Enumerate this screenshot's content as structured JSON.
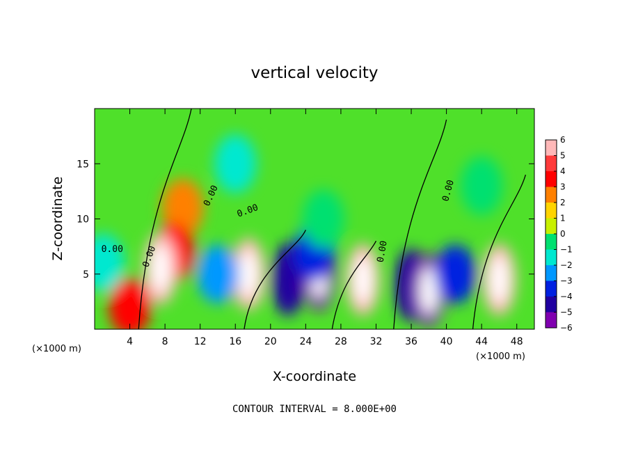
{
  "chart_data": {
    "type": "heatmap",
    "title": "vertical velocity",
    "xlabel": "X-coordinate",
    "ylabel": "Z-coordinate",
    "x_unit": "(×1000 m)",
    "x_unit_right": "(×1000 m)",
    "xlim": [
      0,
      50
    ],
    "ylim": [
      0,
      20
    ],
    "x_ticks": [
      4,
      8,
      12,
      16,
      20,
      24,
      28,
      32,
      36,
      40,
      44,
      48
    ],
    "y_ticks": [
      5,
      10,
      15
    ],
    "colorbar": {
      "ticks": [
        6,
        5,
        4,
        3,
        2,
        1,
        0,
        -1,
        -2,
        -3,
        -4,
        -5,
        -6
      ],
      "tick_labels": [
        "6",
        "5",
        "4",
        "3",
        "2",
        "1",
        "0",
        "−1",
        "−2",
        "−3",
        "−4",
        "−5",
        "−6"
      ],
      "range": [
        -6,
        6
      ]
    },
    "contour_labels": [
      "0.00",
      "0.00",
      "0.00",
      "0.00",
      "0.00",
      "0.00"
    ],
    "footer": "CONTOUR INTERVAL = 8.000E+00",
    "cells": [
      {
        "x": 10,
        "z": 11,
        "w": 3
      },
      {
        "x": 9,
        "z": 7,
        "w": 4
      },
      {
        "x": 7.5,
        "z": 5.5,
        "w": 6
      },
      {
        "x": 4,
        "z": 2,
        "w": 4
      },
      {
        "x": 17.5,
        "z": 5,
        "w": 6
      },
      {
        "x": 14,
        "z": 5,
        "w": -3
      },
      {
        "x": 22,
        "z": 4.5,
        "w": -5
      },
      {
        "x": 25.5,
        "z": 5,
        "w": -6
      },
      {
        "x": 25,
        "z": 7,
        "w": -4
      },
      {
        "x": 30.5,
        "z": 4.5,
        "w": 6
      },
      {
        "x": 36,
        "z": 4,
        "w": -5
      },
      {
        "x": 38,
        "z": 3.5,
        "w": -6
      },
      {
        "x": 41,
        "z": 5,
        "w": -4
      },
      {
        "x": 46,
        "z": 4.5,
        "w": 6
      },
      {
        "x": 1,
        "z": 6,
        "w": -2
      },
      {
        "x": 16,
        "z": 15,
        "w": -2
      },
      {
        "x": 26,
        "z": 10,
        "w": -1
      },
      {
        "x": 44,
        "z": 13,
        "w": -1
      }
    ]
  }
}
